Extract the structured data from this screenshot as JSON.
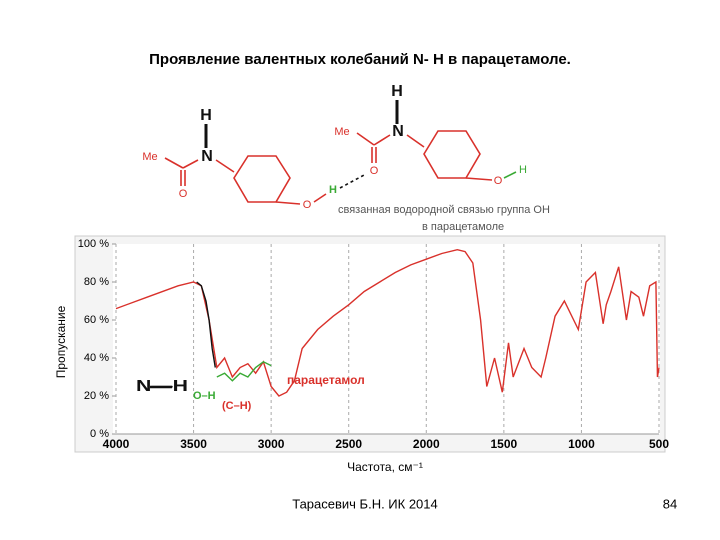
{
  "slide": {
    "title": "Проявление валентных колебаний N- H в парацетамоле.",
    "footer": "Тарасевич Б.Н.  ИК 2014",
    "page": "84"
  },
  "structures": {
    "labels": [
      "H",
      "N",
      "Me",
      "O",
      "O",
      "H",
      "H",
      "N",
      "Me",
      "O",
      "O",
      "H"
    ],
    "note": [
      "связанная водородной связью группа ОН",
      "в парацетамоле"
    ]
  },
  "chart_data": {
    "type": "line",
    "xlabel": "Частота, см⁻¹",
    "ylabel": "Пропускание",
    "xlim": [
      4000,
      500
    ],
    "ylim": [
      0,
      100
    ],
    "xticks": [
      4000,
      3500,
      3000,
      2500,
      2000,
      1500,
      1000,
      500
    ],
    "yticks": [
      {
        "value": 0,
        "label": "0 %"
      },
      {
        "value": 20,
        "label": "20 %"
      },
      {
        "value": 40,
        "label": "40 %"
      },
      {
        "value": 60,
        "label": "60 %"
      },
      {
        "value": 80,
        "label": "80 %"
      },
      {
        "value": 100,
        "label": "100 %"
      }
    ],
    "grid": "x",
    "annotations": [
      "(C–H)"
    ],
    "series": [
      {
        "name": "парацетамол",
        "color": "#d9312b",
        "x": [
          4000,
          3800,
          3600,
          3500,
          3450,
          3400,
          3350,
          3300,
          3250,
          3200,
          3150,
          3100,
          3050,
          3000,
          2950,
          2900,
          2850,
          2800,
          2700,
          2600,
          2500,
          2400,
          2300,
          2200,
          2100,
          2000,
          1900,
          1800,
          1750,
          1700,
          1650,
          1610,
          1560,
          1510,
          1470,
          1440,
          1370,
          1320,
          1260,
          1230,
          1170,
          1110,
          1020,
          970,
          910,
          860,
          840,
          810,
          760,
          710,
          680,
          630,
          600,
          560,
          520,
          510,
          500
        ],
        "values": [
          66,
          72,
          78,
          80,
          78,
          60,
          35,
          40,
          30,
          35,
          37,
          32,
          38,
          25,
          20,
          22,
          28,
          45,
          55,
          62,
          68,
          75,
          80,
          85,
          89,
          92,
          95,
          97,
          96,
          90,
          60,
          25,
          40,
          22,
          48,
          30,
          45,
          35,
          30,
          40,
          62,
          70,
          55,
          80,
          85,
          58,
          68,
          75,
          88,
          60,
          75,
          72,
          62,
          78,
          80,
          30,
          35
        ]
      },
      {
        "name": "N—H",
        "color": "#111111",
        "x": [
          3480,
          3450,
          3420,
          3400,
          3380,
          3360
        ],
        "values": [
          80,
          78,
          70,
          60,
          45,
          35
        ]
      },
      {
        "name": "O–H",
        "color": "#3aaa35",
        "x": [
          3350,
          3300,
          3250,
          3200,
          3150,
          3100,
          3050,
          3000
        ],
        "values": [
          30,
          32,
          28,
          32,
          30,
          35,
          38,
          36
        ]
      }
    ]
  }
}
